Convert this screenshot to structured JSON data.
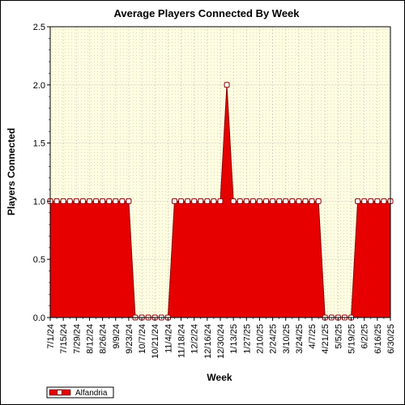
{
  "chart_data": {
    "type": "area",
    "title": "Average Players Connected By Week",
    "xlabel": "Week",
    "ylabel": "Players Connected",
    "ylim": [
      0,
      2.5
    ],
    "yticks": [
      "0.0",
      "0.5",
      "1.0",
      "1.5",
      "2.0",
      "2.5"
    ],
    "xtick_labels": [
      "7/1/24",
      "7/15/24",
      "7/29/24",
      "8/12/24",
      "8/26/24",
      "9/9/24",
      "9/23/24",
      "10/7/24",
      "10/21/24",
      "11/4/24",
      "11/18/24",
      "12/2/24",
      "12/16/24",
      "12/30/24",
      "1/13/25",
      "1/27/25",
      "2/10/25",
      "2/24/25",
      "3/10/25",
      "3/24/25",
      "4/7/25",
      "4/21/25",
      "5/5/25",
      "5/19/25",
      "6/2/25",
      "6/16/25",
      "6/30/25"
    ],
    "grid": true,
    "legend_position": "bottom-left",
    "background_color": "#fffde0",
    "series": [
      {
        "name": "Alfandria",
        "color": "#e60000",
        "marker": "square-open",
        "values": [
          1,
          1,
          1,
          1,
          1,
          1,
          1,
          1,
          1,
          1,
          1,
          1,
          1,
          0,
          0,
          0,
          0,
          0,
          0,
          1,
          1,
          1,
          1,
          1,
          1,
          1,
          1,
          2,
          1,
          1,
          1,
          1,
          1,
          1,
          1,
          1,
          1,
          1,
          1,
          1,
          1,
          1,
          0,
          0,
          0,
          0,
          0,
          1,
          1,
          1,
          1,
          1,
          1
        ]
      }
    ]
  }
}
